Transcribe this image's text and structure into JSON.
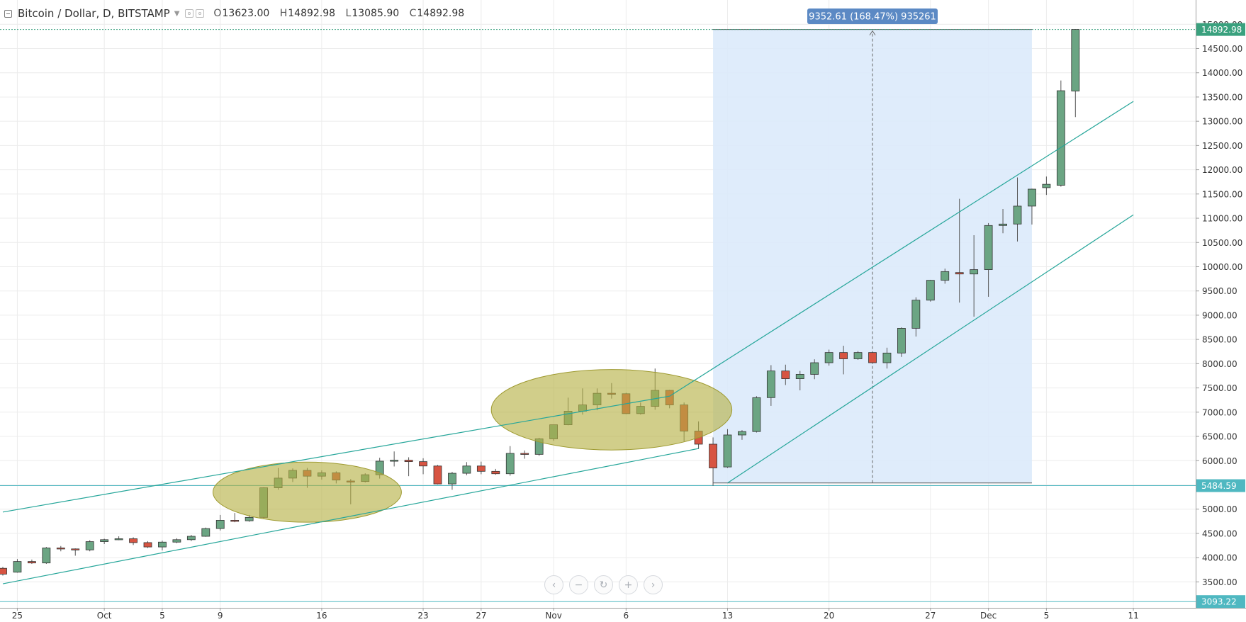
{
  "header": {
    "symbol": "Bitcoin / Dollar, D, BITSTAMP",
    "o_label": "O",
    "o_value": "13623.00",
    "h_label": "H",
    "h_value": "14892.98",
    "l_label": "L",
    "l_value": "13085.90",
    "c_label": "C",
    "c_value": "14892.98"
  },
  "nav": {
    "scroll_left": "‹",
    "zoom_out": "−",
    "reset": "↻",
    "zoom_in": "+",
    "scroll_right": "›"
  },
  "colors": {
    "up": "#6ba583",
    "down": "#d75442",
    "wick": "#555555",
    "channel": "#26a69a",
    "highlight": "#b5b042",
    "range": "#dceafb",
    "label": "#5b89c4",
    "grid": "#ececec"
  },
  "chart_data": {
    "type": "candlestick",
    "ylim": [
      3000,
      15200
    ],
    "yticks": [
      3500,
      4000,
      4500,
      5000,
      5500,
      6000,
      6500,
      7000,
      7500,
      8000,
      8500,
      9000,
      9500,
      10000,
      10500,
      11000,
      11500,
      12000,
      12500,
      13000,
      13500,
      14000,
      14500,
      15000
    ],
    "ytick_labels": [
      "3500.00",
      "4000.00",
      "4500.00",
      "5000.00",
      "5500.00",
      "6000.00",
      "6500.00",
      "7000.00",
      "7500.00",
      "8000.00",
      "8500.00",
      "9000.00",
      "9500.00",
      "10000.00",
      "10500.00",
      "11000.00",
      "11500.00",
      "12000.00",
      "12500.00",
      "13000.00",
      "13500.00",
      "14000.00",
      "14500.00",
      "15000.00"
    ],
    "xticks": [
      {
        "label": "25",
        "date": "2017-09-25"
      },
      {
        "label": "Oct",
        "date": "2017-10-01"
      },
      {
        "label": "5",
        "date": "2017-10-05"
      },
      {
        "label": "9",
        "date": "2017-10-09"
      },
      {
        "label": "16",
        "date": "2017-10-16"
      },
      {
        "label": "23",
        "date": "2017-10-23"
      },
      {
        "label": "27",
        "date": "2017-10-27"
      },
      {
        "label": "Nov",
        "date": "2017-11-01"
      },
      {
        "label": "6",
        "date": "2017-11-06"
      },
      {
        "label": "13",
        "date": "2017-11-13"
      },
      {
        "label": "20",
        "date": "2017-11-20"
      },
      {
        "label": "27",
        "date": "2017-11-27"
      },
      {
        "label": "Dec",
        "date": "2017-12-01"
      },
      {
        "label": "5",
        "date": "2017-12-05"
      },
      {
        "label": "11",
        "date": "2017-12-11"
      }
    ],
    "candles": [
      {
        "date": "2017-09-24",
        "o": 3780,
        "h": 3810,
        "l": 3630,
        "c": 3660
      },
      {
        "date": "2017-09-25",
        "o": 3700,
        "h": 3970,
        "l": 3690,
        "c": 3920
      },
      {
        "date": "2017-09-26",
        "o": 3920,
        "h": 3960,
        "l": 3870,
        "c": 3890
      },
      {
        "date": "2017-09-27",
        "o": 3890,
        "h": 4220,
        "l": 3870,
        "c": 4200
      },
      {
        "date": "2017-09-28",
        "o": 4200,
        "h": 4240,
        "l": 4130,
        "c": 4180
      },
      {
        "date": "2017-09-29",
        "o": 4180,
        "h": 4190,
        "l": 4040,
        "c": 4160
      },
      {
        "date": "2017-09-30",
        "o": 4160,
        "h": 4360,
        "l": 4130,
        "c": 4330
      },
      {
        "date": "2017-10-01",
        "o": 4330,
        "h": 4390,
        "l": 4280,
        "c": 4370
      },
      {
        "date": "2017-10-02",
        "o": 4370,
        "h": 4440,
        "l": 4360,
        "c": 4390
      },
      {
        "date": "2017-10-03",
        "o": 4390,
        "h": 4420,
        "l": 4260,
        "c": 4310
      },
      {
        "date": "2017-10-04",
        "o": 4310,
        "h": 4340,
        "l": 4200,
        "c": 4220
      },
      {
        "date": "2017-10-05",
        "o": 4220,
        "h": 4350,
        "l": 4150,
        "c": 4320
      },
      {
        "date": "2017-10-06",
        "o": 4320,
        "h": 4400,
        "l": 4300,
        "c": 4370
      },
      {
        "date": "2017-10-07",
        "o": 4370,
        "h": 4470,
        "l": 4340,
        "c": 4440
      },
      {
        "date": "2017-10-08",
        "o": 4440,
        "h": 4620,
        "l": 4430,
        "c": 4600
      },
      {
        "date": "2017-10-09",
        "o": 4600,
        "h": 4880,
        "l": 4560,
        "c": 4770
      },
      {
        "date": "2017-10-10",
        "o": 4770,
        "h": 4920,
        "l": 4730,
        "c": 4760
      },
      {
        "date": "2017-10-11",
        "o": 4760,
        "h": 4880,
        "l": 4740,
        "c": 4830
      },
      {
        "date": "2017-10-12",
        "o": 4830,
        "h": 5450,
        "l": 4810,
        "c": 5440
      },
      {
        "date": "2017-10-13",
        "o": 5440,
        "h": 5850,
        "l": 5400,
        "c": 5640
      },
      {
        "date": "2017-10-14",
        "o": 5640,
        "h": 5840,
        "l": 5560,
        "c": 5800
      },
      {
        "date": "2017-10-15",
        "o": 5800,
        "h": 5850,
        "l": 5440,
        "c": 5680
      },
      {
        "date": "2017-10-16",
        "o": 5680,
        "h": 5800,
        "l": 5610,
        "c": 5750
      },
      {
        "date": "2017-10-17",
        "o": 5750,
        "h": 5780,
        "l": 5530,
        "c": 5600
      },
      {
        "date": "2017-10-18",
        "o": 5580,
        "h": 5620,
        "l": 5100,
        "c": 5570
      },
      {
        "date": "2017-10-19",
        "o": 5570,
        "h": 5740,
        "l": 5550,
        "c": 5710
      },
      {
        "date": "2017-10-20",
        "o": 5710,
        "h": 6060,
        "l": 5630,
        "c": 5990
      },
      {
        "date": "2017-10-21",
        "o": 5990,
        "h": 6190,
        "l": 5880,
        "c": 6010
      },
      {
        "date": "2017-10-22",
        "o": 6010,
        "h": 6070,
        "l": 5680,
        "c": 5980
      },
      {
        "date": "2017-10-23",
        "o": 5980,
        "h": 6050,
        "l": 5720,
        "c": 5890
      },
      {
        "date": "2017-10-24",
        "o": 5890,
        "h": 5910,
        "l": 5510,
        "c": 5520
      },
      {
        "date": "2017-10-25",
        "o": 5520,
        "h": 5770,
        "l": 5400,
        "c": 5740
      },
      {
        "date": "2017-10-26",
        "o": 5740,
        "h": 5970,
        "l": 5700,
        "c": 5890
      },
      {
        "date": "2017-10-27",
        "o": 5890,
        "h": 5980,
        "l": 5720,
        "c": 5780
      },
      {
        "date": "2017-10-28",
        "o": 5780,
        "h": 5830,
        "l": 5710,
        "c": 5730
      },
      {
        "date": "2017-10-29",
        "o": 5730,
        "h": 6300,
        "l": 5690,
        "c": 6150
      },
      {
        "date": "2017-10-30",
        "o": 6150,
        "h": 6210,
        "l": 6040,
        "c": 6130
      },
      {
        "date": "2017-10-31",
        "o": 6130,
        "h": 6470,
        "l": 6100,
        "c": 6450
      },
      {
        "date": "2017-11-01",
        "o": 6450,
        "h": 6740,
        "l": 6410,
        "c": 6740
      },
      {
        "date": "2017-11-02",
        "o": 6740,
        "h": 7300,
        "l": 6730,
        "c": 7020
      },
      {
        "date": "2017-11-03",
        "o": 7020,
        "h": 7490,
        "l": 6950,
        "c": 7150
      },
      {
        "date": "2017-11-04",
        "o": 7150,
        "h": 7490,
        "l": 7040,
        "c": 7390
      },
      {
        "date": "2017-11-05",
        "o": 7390,
        "h": 7600,
        "l": 7280,
        "c": 7380
      },
      {
        "date": "2017-11-06",
        "o": 7380,
        "h": 7400,
        "l": 6960,
        "c": 6970
      },
      {
        "date": "2017-11-07",
        "o": 6970,
        "h": 7200,
        "l": 6950,
        "c": 7120
      },
      {
        "date": "2017-11-08",
        "o": 7120,
        "h": 7900,
        "l": 7050,
        "c": 7450
      },
      {
        "date": "2017-11-09",
        "o": 7450,
        "h": 7460,
        "l": 7080,
        "c": 7150
      },
      {
        "date": "2017-11-10",
        "o": 7150,
        "h": 7200,
        "l": 6400,
        "c": 6610
      },
      {
        "date": "2017-11-11",
        "o": 6610,
        "h": 6810,
        "l": 6240,
        "c": 6340
      },
      {
        "date": "2017-11-12",
        "o": 6340,
        "h": 6480,
        "l": 5480,
        "c": 5850
      },
      {
        "date": "2017-11-13",
        "o": 5870,
        "h": 6650,
        "l": 5850,
        "c": 6530
      },
      {
        "date": "2017-11-14",
        "o": 6530,
        "h": 6630,
        "l": 6430,
        "c": 6600
      },
      {
        "date": "2017-11-15",
        "o": 6600,
        "h": 7330,
        "l": 6580,
        "c": 7300
      },
      {
        "date": "2017-11-16",
        "o": 7300,
        "h": 7970,
        "l": 7130,
        "c": 7850
      },
      {
        "date": "2017-11-17",
        "o": 7850,
        "h": 7980,
        "l": 7560,
        "c": 7690
      },
      {
        "date": "2017-11-18",
        "o": 7690,
        "h": 7850,
        "l": 7450,
        "c": 7780
      },
      {
        "date": "2017-11-19",
        "o": 7780,
        "h": 8090,
        "l": 7680,
        "c": 8020
      },
      {
        "date": "2017-11-20",
        "o": 8020,
        "h": 8290,
        "l": 7960,
        "c": 8230
      },
      {
        "date": "2017-11-21",
        "o": 8230,
        "h": 8370,
        "l": 7780,
        "c": 8100
      },
      {
        "date": "2017-11-22",
        "o": 8100,
        "h": 8260,
        "l": 8080,
        "c": 8230
      },
      {
        "date": "2017-11-23",
        "o": 8230,
        "h": 8240,
        "l": 8000,
        "c": 8020
      },
      {
        "date": "2017-11-24",
        "o": 8020,
        "h": 8330,
        "l": 7900,
        "c": 8220
      },
      {
        "date": "2017-11-25",
        "o": 8220,
        "h": 8750,
        "l": 8140,
        "c": 8730
      },
      {
        "date": "2017-11-26",
        "o": 8730,
        "h": 9370,
        "l": 8560,
        "c": 9310
      },
      {
        "date": "2017-11-27",
        "o": 9310,
        "h": 9730,
        "l": 9280,
        "c": 9720
      },
      {
        "date": "2017-11-28",
        "o": 9720,
        "h": 9960,
        "l": 9650,
        "c": 9900
      },
      {
        "date": "2017-11-29",
        "o": 9880,
        "h": 11400,
        "l": 9260,
        "c": 9850
      },
      {
        "date": "2017-11-30",
        "o": 9850,
        "h": 10650,
        "l": 8970,
        "c": 9940
      },
      {
        "date": "2017-12-01",
        "o": 9940,
        "h": 10900,
        "l": 9380,
        "c": 10850
      },
      {
        "date": "2017-12-02",
        "o": 10850,
        "h": 11190,
        "l": 10690,
        "c": 10880
      },
      {
        "date": "2017-12-03",
        "o": 10880,
        "h": 11840,
        "l": 10520,
        "c": 11250
      },
      {
        "date": "2017-12-04",
        "o": 11250,
        "h": 11610,
        "l": 10870,
        "c": 11600
      },
      {
        "date": "2017-12-05",
        "o": 11630,
        "h": 11860,
        "l": 11480,
        "c": 11700
      },
      {
        "date": "2017-12-06",
        "o": 11680,
        "h": 13840,
        "l": 11650,
        "c": 13630
      },
      {
        "date": "2017-12-07",
        "o": 13623.0,
        "h": 14892.98,
        "l": 13085.9,
        "c": 14892.98
      }
    ],
    "price_labels": [
      {
        "value": 14892.98,
        "text": "14892.98"
      },
      {
        "value": 5484.59,
        "text": "5484.59"
      },
      {
        "value": 3093.22,
        "text": "3093.22"
      }
    ],
    "measure": {
      "start_date": "2017-11-12",
      "end_date": "2017-12-04",
      "low": 5540,
      "high": 14892.98,
      "text": "9352.61 (168.47%) 935261"
    },
    "trendlines": [
      {
        "from": {
          "date": "2017-09-24",
          "value": 4940
        },
        "to": {
          "date": "2017-11-09",
          "value": 7330
        }
      },
      {
        "from": {
          "date": "2017-09-24",
          "value": 3460
        },
        "to": {
          "date": "2017-11-11",
          "value": 6250
        }
      },
      {
        "from": {
          "date": "2017-11-09",
          "value": 7330
        },
        "to": {
          "date": "2017-12-11",
          "value": 13410
        }
      },
      {
        "from": {
          "date": "2017-11-13",
          "value": 5540
        },
        "to": {
          "date": "2017-12-11",
          "value": 11070
        }
      }
    ],
    "highlights": [
      {
        "center": {
          "date": "2017-10-15",
          "value": 5350
        },
        "radius_days": 6.5,
        "radius_value": 620
      },
      {
        "center": {
          "date": "2017-11-05",
          "value": 7050
        },
        "radius_days": 8.3,
        "radius_value": 830
      }
    ]
  }
}
